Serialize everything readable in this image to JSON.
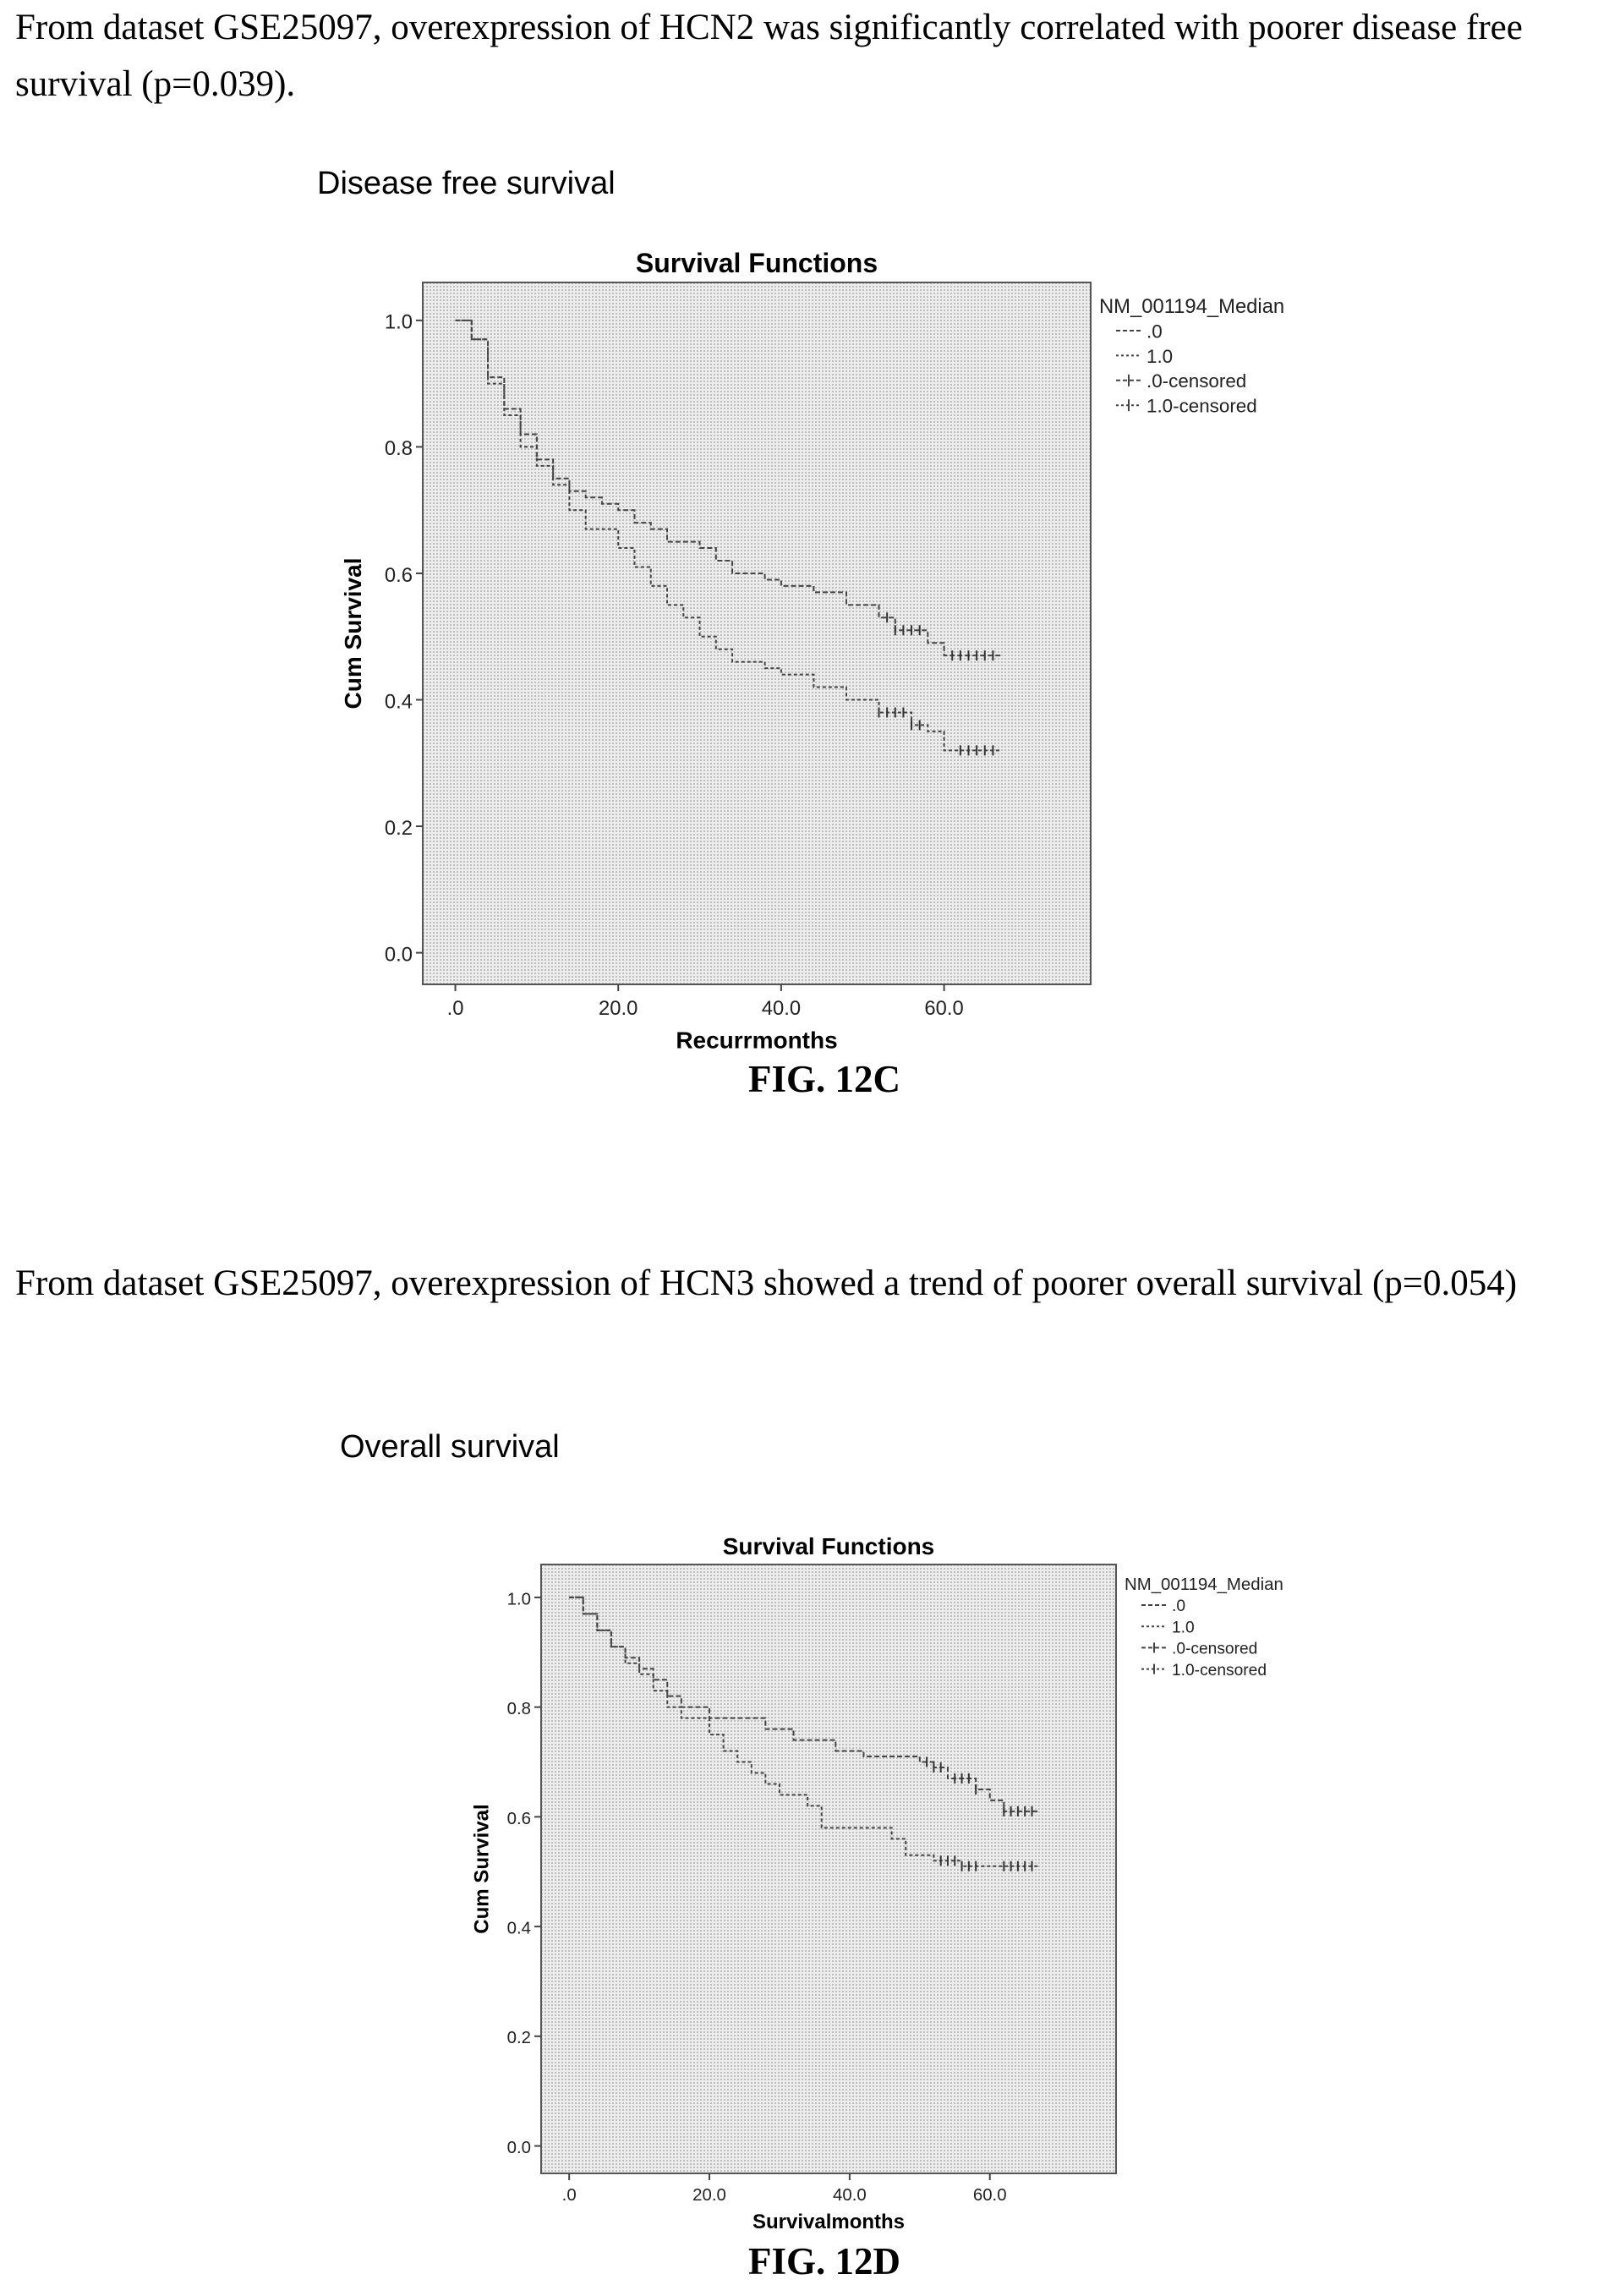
{
  "paragraph_1": "From dataset GSE25097, overexpression of HCN2 was significantly correlated with poorer disease free survival (p=0.039).",
  "section_label_1": "Disease free survival",
  "caption_1": "FIG. 12C",
  "paragraph_2": "From dataset GSE25097, overexpression of HCN3 showed a trend of poorer overall survival (p=0.054)",
  "section_label_2": "Overall survival",
  "caption_2": "FIG. 12D",
  "chart_data": [
    {
      "type": "line",
      "step": true,
      "title": "Survival Functions",
      "xlabel": "Recurrmonths",
      "ylabel": "Cum Survival",
      "xlim": [
        -4,
        78
      ],
      "ylim": [
        -0.05,
        1.06
      ],
      "xticks": [
        0,
        20,
        40,
        60
      ],
      "xtick_labels": [
        ".0",
        "20.0",
        "40.0",
        "60.0"
      ],
      "yticks": [
        0,
        0.2,
        0.4,
        0.6,
        0.8,
        1.0
      ],
      "ytick_labels": [
        "0.0",
        "0.2",
        "0.4",
        "0.6",
        "0.8",
        "1.0"
      ],
      "legend_title": "NM_001194_Median",
      "legend_entries": [
        ".0",
        "1.0",
        ".0-censored",
        "1.0-censored"
      ],
      "legend_position": "right",
      "plot_background": "#e3e3e3",
      "series": [
        {
          "name": ".0",
          "color": "#444444",
          "points": [
            [
              0,
              1.0
            ],
            [
              2,
              0.97
            ],
            [
              4,
              0.91
            ],
            [
              6,
              0.86
            ],
            [
              8,
              0.82
            ],
            [
              10,
              0.78
            ],
            [
              12,
              0.75
            ],
            [
              14,
              0.73
            ],
            [
              16,
              0.72
            ],
            [
              18,
              0.71
            ],
            [
              20,
              0.7
            ],
            [
              22,
              0.68
            ],
            [
              24,
              0.67
            ],
            [
              26,
              0.65
            ],
            [
              30,
              0.64
            ],
            [
              32,
              0.62
            ],
            [
              34,
              0.6
            ],
            [
              38,
              0.59
            ],
            [
              40,
              0.58
            ],
            [
              44,
              0.57
            ],
            [
              48,
              0.55
            ],
            [
              52,
              0.53
            ],
            [
              54,
              0.51
            ],
            [
              58,
              0.49
            ],
            [
              60,
              0.47
            ],
            [
              67,
              0.47
            ]
          ],
          "censored_x": [
            53,
            54,
            55,
            56,
            57,
            61,
            62,
            63,
            64,
            65,
            66
          ]
        },
        {
          "name": "1.0",
          "color": "#444444",
          "points": [
            [
              0,
              1.0
            ],
            [
              2,
              0.97
            ],
            [
              4,
              0.9
            ],
            [
              6,
              0.85
            ],
            [
              8,
              0.8
            ],
            [
              10,
              0.77
            ],
            [
              12,
              0.74
            ],
            [
              14,
              0.7
            ],
            [
              16,
              0.67
            ],
            [
              20,
              0.64
            ],
            [
              22,
              0.61
            ],
            [
              24,
              0.58
            ],
            [
              26,
              0.55
            ],
            [
              28,
              0.53
            ],
            [
              30,
              0.5
            ],
            [
              32,
              0.48
            ],
            [
              34,
              0.46
            ],
            [
              38,
              0.45
            ],
            [
              40,
              0.44
            ],
            [
              44,
              0.42
            ],
            [
              48,
              0.4
            ],
            [
              52,
              0.38
            ],
            [
              56,
              0.36
            ],
            [
              58,
              0.35
            ],
            [
              60,
              0.32
            ],
            [
              67,
              0.32
            ]
          ],
          "censored_x": [
            52,
            53,
            54,
            55,
            56,
            57,
            62,
            63,
            64,
            65,
            66
          ]
        }
      ]
    },
    {
      "type": "line",
      "step": true,
      "title": "Survival Functions",
      "xlabel": "Survivalmonths",
      "ylabel": "Cum Survival",
      "xlim": [
        -4,
        78
      ],
      "ylim": [
        -0.05,
        1.06
      ],
      "xticks": [
        0,
        20,
        40,
        60
      ],
      "xtick_labels": [
        ".0",
        "20.0",
        "40.0",
        "60.0"
      ],
      "yticks": [
        0,
        0.2,
        0.4,
        0.6,
        0.8,
        1.0
      ],
      "ytick_labels": [
        "0.0",
        "0.2",
        "0.4",
        "0.6",
        "0.8",
        "1.0"
      ],
      "legend_title": "NM_001194_Median",
      "legend_entries": [
        ".0",
        "1.0",
        ".0-censored",
        "1.0-censored"
      ],
      "legend_position": "right",
      "plot_background": "#e3e3e3",
      "series": [
        {
          "name": ".0",
          "color": "#444444",
          "points": [
            [
              0,
              1.0
            ],
            [
              2,
              0.97
            ],
            [
              4,
              0.94
            ],
            [
              6,
              0.91
            ],
            [
              8,
              0.89
            ],
            [
              10,
              0.87
            ],
            [
              12,
              0.85
            ],
            [
              14,
              0.82
            ],
            [
              16,
              0.8
            ],
            [
              20,
              0.78
            ],
            [
              28,
              0.76
            ],
            [
              32,
              0.74
            ],
            [
              38,
              0.72
            ],
            [
              42,
              0.71
            ],
            [
              50,
              0.7
            ],
            [
              52,
              0.69
            ],
            [
              54,
              0.67
            ],
            [
              58,
              0.65
            ],
            [
              60,
              0.63
            ],
            [
              62,
              0.61
            ],
            [
              67,
              0.61
            ]
          ],
          "censored_x": [
            51,
            52,
            53,
            55,
            56,
            57,
            58,
            62,
            63,
            64,
            65,
            66
          ]
        },
        {
          "name": "1.0",
          "color": "#444444",
          "points": [
            [
              0,
              1.0
            ],
            [
              2,
              0.97
            ],
            [
              4,
              0.94
            ],
            [
              6,
              0.91
            ],
            [
              8,
              0.88
            ],
            [
              10,
              0.86
            ],
            [
              12,
              0.83
            ],
            [
              14,
              0.8
            ],
            [
              16,
              0.78
            ],
            [
              20,
              0.75
            ],
            [
              22,
              0.72
            ],
            [
              24,
              0.7
            ],
            [
              26,
              0.68
            ],
            [
              28,
              0.66
            ],
            [
              30,
              0.64
            ],
            [
              34,
              0.62
            ],
            [
              36,
              0.58
            ],
            [
              46,
              0.56
            ],
            [
              48,
              0.53
            ],
            [
              52,
              0.52
            ],
            [
              56,
              0.51
            ],
            [
              67,
              0.51
            ]
          ],
          "censored_x": [
            53,
            54,
            55,
            56,
            57,
            58,
            62,
            63,
            64,
            65,
            66
          ]
        }
      ]
    }
  ]
}
